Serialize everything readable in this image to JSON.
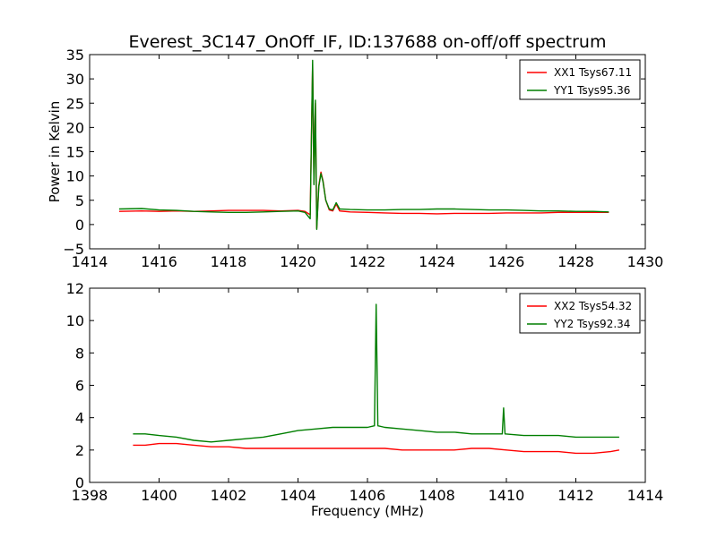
{
  "figure": {
    "title": "Everest_3C147_OnOff_IF, ID:137688 on-off/off spectrum"
  },
  "chart_data": [
    {
      "type": "line",
      "title": "Everest_3C147_OnOff_IF, ID:137688 on-off/off spectrum",
      "xlabel": "",
      "ylabel": "Power in Kelvin",
      "xlim": [
        1414,
        1430
      ],
      "ylim": [
        -5,
        35
      ],
      "xticks": [
        1414,
        1416,
        1418,
        1420,
        1422,
        1424,
        1426,
        1428,
        1430
      ],
      "yticks": [
        -5,
        0,
        5,
        10,
        15,
        20,
        25,
        30,
        35
      ],
      "grid": false,
      "legend_position": "top-right",
      "series": [
        {
          "name": "XX1 Tsys67.11",
          "color": "#ff0000",
          "x": [
            1414.85,
            1415.5,
            1416.0,
            1416.5,
            1417.0,
            1417.5,
            1418.0,
            1418.5,
            1419.0,
            1419.5,
            1420.0,
            1420.2,
            1420.35,
            1420.42,
            1420.46,
            1420.5,
            1420.54,
            1420.6,
            1420.66,
            1420.72,
            1420.8,
            1420.9,
            1421.0,
            1421.1,
            1421.2,
            1421.5,
            1422.0,
            1422.5,
            1423.0,
            1423.5,
            1424.0,
            1424.5,
            1425.0,
            1425.5,
            1426.0,
            1426.5,
            1427.0,
            1427.5,
            1428.0,
            1428.5,
            1428.95
          ],
          "y": [
            2.7,
            2.8,
            2.7,
            2.8,
            2.7,
            2.8,
            2.9,
            2.9,
            2.9,
            2.8,
            2.9,
            2.7,
            2.0,
            33.0,
            8.5,
            25.0,
            -0.8,
            8.0,
            10.8,
            9.0,
            5.0,
            3.0,
            2.8,
            4.2,
            2.8,
            2.6,
            2.5,
            2.4,
            2.3,
            2.3,
            2.2,
            2.3,
            2.3,
            2.3,
            2.4,
            2.4,
            2.4,
            2.5,
            2.5,
            2.5,
            2.5
          ]
        },
        {
          "name": "YY1 Tsys95.36",
          "color": "#007f00",
          "x": [
            1414.85,
            1415.5,
            1416.0,
            1416.5,
            1417.0,
            1417.5,
            1418.0,
            1418.5,
            1419.0,
            1419.5,
            1420.0,
            1420.2,
            1420.35,
            1420.42,
            1420.46,
            1420.5,
            1420.54,
            1420.6,
            1420.66,
            1420.72,
            1420.8,
            1420.9,
            1421.0,
            1421.1,
            1421.2,
            1421.5,
            1422.0,
            1422.5,
            1423.0,
            1423.5,
            1424.0,
            1424.5,
            1425.0,
            1425.5,
            1426.0,
            1426.5,
            1427.0,
            1427.5,
            1428.0,
            1428.5,
            1428.95
          ],
          "y": [
            3.2,
            3.3,
            3.0,
            2.9,
            2.7,
            2.6,
            2.5,
            2.5,
            2.6,
            2.7,
            2.8,
            2.5,
            1.2,
            33.8,
            8.2,
            25.6,
            -1.0,
            7.8,
            10.5,
            8.8,
            5.0,
            3.2,
            3.0,
            4.5,
            3.2,
            3.1,
            3.0,
            3.0,
            3.1,
            3.1,
            3.2,
            3.2,
            3.1,
            3.0,
            3.0,
            2.9,
            2.8,
            2.8,
            2.7,
            2.7,
            2.6
          ]
        }
      ]
    },
    {
      "type": "line",
      "title": "",
      "xlabel": "Frequency (MHz)",
      "ylabel": "",
      "xlim": [
        1398,
        1414
      ],
      "ylim": [
        0,
        12
      ],
      "xticks": [
        1398,
        1400,
        1402,
        1404,
        1406,
        1408,
        1410,
        1412,
        1414
      ],
      "yticks": [
        0,
        2,
        4,
        6,
        8,
        10,
        12
      ],
      "grid": false,
      "legend_position": "top-right",
      "series": [
        {
          "name": "XX2 Tsys54.32",
          "color": "#ff0000",
          "x": [
            1399.25,
            1399.6,
            1400.0,
            1400.5,
            1401.0,
            1401.5,
            1402.0,
            1402.5,
            1403.0,
            1403.5,
            1404.0,
            1404.5,
            1405.0,
            1405.5,
            1406.0,
            1406.5,
            1407.0,
            1407.5,
            1408.0,
            1408.5,
            1409.0,
            1409.5,
            1410.0,
            1410.5,
            1411.0,
            1411.5,
            1412.0,
            1412.5,
            1413.0,
            1413.25
          ],
          "y": [
            2.3,
            2.3,
            2.4,
            2.4,
            2.3,
            2.2,
            2.2,
            2.1,
            2.1,
            2.1,
            2.1,
            2.1,
            2.1,
            2.1,
            2.1,
            2.1,
            2.0,
            2.0,
            2.0,
            2.0,
            2.1,
            2.1,
            2.0,
            1.9,
            1.9,
            1.9,
            1.8,
            1.8,
            1.9,
            2.0
          ]
        },
        {
          "name": "YY2 Tsys92.34",
          "color": "#007f00",
          "x": [
            1399.25,
            1399.6,
            1400.0,
            1400.5,
            1401.0,
            1401.5,
            1402.0,
            1402.5,
            1403.0,
            1403.5,
            1404.0,
            1404.5,
            1405.0,
            1405.5,
            1406.0,
            1406.2,
            1406.25,
            1406.3,
            1406.5,
            1407.0,
            1407.5,
            1408.0,
            1408.5,
            1409.0,
            1409.5,
            1409.88,
            1409.92,
            1409.96,
            1410.5,
            1411.0,
            1411.5,
            1412.0,
            1412.5,
            1413.0,
            1413.25
          ],
          "y": [
            3.0,
            3.0,
            2.9,
            2.8,
            2.6,
            2.5,
            2.6,
            2.7,
            2.8,
            3.0,
            3.2,
            3.3,
            3.4,
            3.4,
            3.4,
            3.5,
            11.0,
            3.5,
            3.4,
            3.3,
            3.2,
            3.1,
            3.1,
            3.0,
            3.0,
            3.0,
            4.6,
            3.0,
            2.9,
            2.9,
            2.9,
            2.8,
            2.8,
            2.8,
            2.8
          ]
        }
      ]
    }
  ]
}
